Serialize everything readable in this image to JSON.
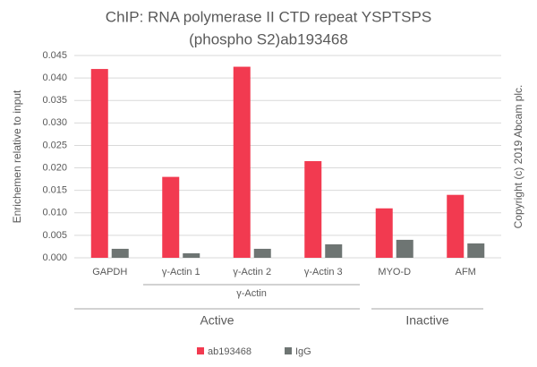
{
  "chart_data": {
    "type": "bar",
    "title": "ChIP: RNA polymerase II CTD repeat YSPTSPS",
    "subtitle": "(phospho S2)ab193468",
    "y_label": "Enrichemen relative to input",
    "side_note": "Copyright (c) 2019 Abcam plc.",
    "categories": [
      "GAPDH",
      "γ-Actin 1",
      "γ-Actin 2",
      "γ-Actin 3",
      "MYO-D",
      "AFM"
    ],
    "series": [
      {
        "name": "ab193468",
        "color": "#f23a50",
        "values": [
          0.042,
          0.018,
          0.0425,
          0.0215,
          0.011,
          0.014
        ]
      },
      {
        "name": "IgG",
        "color": "#6e7573",
        "values": [
          0.002,
          0.001,
          0.002,
          0.003,
          0.004,
          0.0032
        ]
      }
    ],
    "groups": [
      "γ-Actin",
      "Active",
      "Inactive"
    ],
    "ylim": [
      0,
      0.045
    ],
    "yticks": [
      {
        "value": 0,
        "label": "0.000"
      },
      0.005,
      {
        "value": 0.01,
        "label": "0.010"
      },
      0.015,
      {
        "value": 0.02,
        "label": "0.020"
      },
      0.025,
      {
        "value": 0.03,
        "label": "0.030"
      },
      0.035,
      {
        "value": 0.04,
        "label": "0.040"
      },
      0.045
    ],
    "grid": true,
    "legend": "bottom"
  }
}
